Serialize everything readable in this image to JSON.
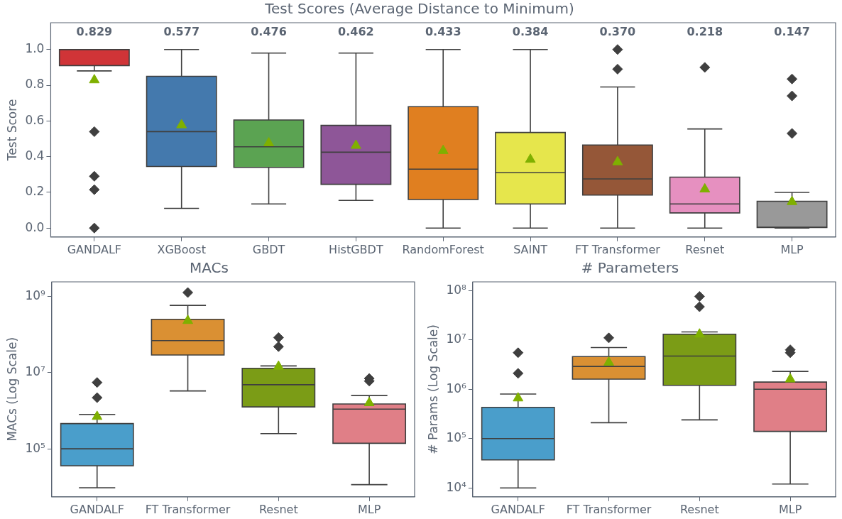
{
  "chart_data": [
    {
      "type": "box",
      "title": "Test Scores (Average Distance to Minimum)",
      "ylabel": "Test Score",
      "categories": [
        "GANDALF",
        "XGBoost",
        "GBDT",
        "HistGBDT",
        "RandomForest",
        "SAINT",
        "FT Transformer",
        "Resnet",
        "MLP"
      ],
      "colors": [
        "#d03437",
        "#4479ad",
        "#5ba352",
        "#8e5698",
        "#e07f20",
        "#e6e64c",
        "#955738",
        "#e690c0",
        "#999999"
      ],
      "boxes": [
        {
          "low": 0.88,
          "q1": 0.91,
          "median": 1.0,
          "q3": 1.0,
          "high": 1.0,
          "mean": 0.829,
          "outliers": [
            0.54,
            0.29,
            0.215,
            0.0
          ]
        },
        {
          "low": 0.11,
          "q1": 0.345,
          "median": 0.54,
          "q3": 0.85,
          "high": 1.0,
          "mean": 0.577
        },
        {
          "low": 0.135,
          "q1": 0.34,
          "median": 0.455,
          "q3": 0.605,
          "high": 0.98,
          "mean": 0.476
        },
        {
          "low": 0.155,
          "q1": 0.245,
          "median": 0.425,
          "q3": 0.575,
          "high": 0.98,
          "mean": 0.462
        },
        {
          "low": 0.0,
          "q1": 0.16,
          "median": 0.33,
          "q3": 0.68,
          "high": 1.0,
          "mean": 0.433
        },
        {
          "low": 0.0,
          "q1": 0.135,
          "median": 0.31,
          "q3": 0.535,
          "high": 1.0,
          "mean": 0.384
        },
        {
          "low": 0.0,
          "q1": 0.185,
          "median": 0.275,
          "q3": 0.465,
          "high": 0.79,
          "mean": 0.37,
          "outliers": [
            1.0,
            0.89
          ]
        },
        {
          "low": 0.0,
          "q1": 0.085,
          "median": 0.135,
          "q3": 0.285,
          "high": 0.555,
          "mean": 0.218,
          "outliers": [
            0.9
          ]
        },
        {
          "low": 0.0,
          "q1": 0.003,
          "median": 0.005,
          "q3": 0.15,
          "high": 0.2,
          "mean": 0.147,
          "outliers": [
            0.835,
            0.74,
            0.53
          ]
        }
      ],
      "value_labels": [
        "0.829",
        "0.577",
        "0.476",
        "0.462",
        "0.433",
        "0.384",
        "0.370",
        "0.218",
        "0.147"
      ],
      "ylim": [
        -0.05,
        1.15
      ],
      "yticks": [
        {
          "value": 0,
          "label": "0.0"
        },
        0.2,
        0.4,
        0.6,
        0.8,
        {
          "value": 1,
          "label": "1.0"
        }
      ],
      "marker": "triangle",
      "grid": false,
      "legend": false
    },
    {
      "type": "box",
      "title": "MACs",
      "ylabel": "MACs (Log Scale)",
      "categories": [
        "GANDALF",
        "FT Transformer",
        "Resnet",
        "MLP"
      ],
      "colors": [
        "#4a9ecb",
        "#da9033",
        "#7b9c16",
        "#e07f87"
      ],
      "boxes": [
        {
          "low": 9500,
          "q1": 36000,
          "median": 100000,
          "q3": 460000,
          "high": 800000,
          "mean": 700000,
          "outliers": [
            5500000,
            2200000
          ]
        },
        {
          "low": 3300000,
          "q1": 29000000,
          "median": 69000000,
          "q3": 250000000,
          "high": 580000000,
          "mean": 230000000,
          "outliers": [
            1260000000
          ]
        },
        {
          "low": 250000,
          "q1": 1260000,
          "median": 4800000,
          "q3": 13000000,
          "high": 15000000,
          "mean": 14500000,
          "outliers": [
            83000000,
            48000000
          ]
        },
        {
          "low": 11500,
          "q1": 140000,
          "median": 1100000,
          "q3": 1500000,
          "high": 2500000,
          "mean": 1600000,
          "outliers": [
            7000000,
            6000000
          ]
        }
      ],
      "log": "y",
      "ylim": [
        5500,
        2400000000
      ],
      "yticks": [
        {
          "value": 100000,
          "label": "10⁵"
        },
        {
          "value": 10000000,
          "label": "10⁷"
        },
        {
          "value": 1000000000,
          "label": "10⁹"
        }
      ],
      "marker": "triangle",
      "grid": false,
      "legend": false
    },
    {
      "type": "box",
      "title": "# Parameters",
      "ylabel": "# Params (Log Scale)",
      "categories": [
        "GANDALF",
        "FT Transformer",
        "Resnet",
        "MLP"
      ],
      "colors": [
        "#4a9ecb",
        "#da9033",
        "#7b9c16",
        "#e07f87"
      ],
      "boxes": [
        {
          "low": 10000,
          "q1": 37000,
          "median": 100000,
          "q3": 430000,
          "high": 800000,
          "mean": 660000,
          "outliers": [
            5500000,
            2100000
          ]
        },
        {
          "low": 210000,
          "q1": 1600000,
          "median": 2900000,
          "q3": 4600000,
          "high": 7000000,
          "mean": 3500000,
          "outliers": [
            11000000
          ]
        },
        {
          "low": 240000,
          "q1": 1200000,
          "median": 4700000,
          "q3": 13000000,
          "high": 14500000,
          "mean": 13000000,
          "outliers": [
            76000000,
            47000000
          ]
        },
        {
          "low": 12000,
          "q1": 140000,
          "median": 1000000,
          "q3": 1400000,
          "high": 2300000,
          "mean": 1600000,
          "outliers": [
            6300000,
            5500000
          ]
        }
      ],
      "log": "y",
      "ylim": [
        6600,
        150000000
      ],
      "yticks": [
        {
          "value": 10000,
          "label": "10⁴"
        },
        {
          "value": 100000,
          "label": "10⁵"
        },
        {
          "value": 1000000,
          "label": "10⁶"
        },
        {
          "value": 10000000,
          "label": "10⁷"
        },
        {
          "value": 100000000,
          "label": "10⁸"
        }
      ],
      "marker": "triangle",
      "grid": false,
      "legend": false
    }
  ]
}
